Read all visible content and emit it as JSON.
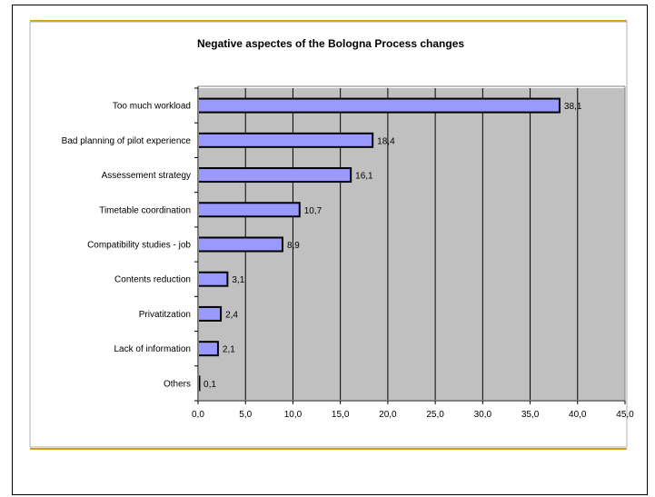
{
  "colors": {
    "bar_fill": "#9999ff",
    "bar_stroke": "#000000",
    "plot_bg": "#c0c0c0",
    "rule_gold": "#d4a017",
    "grid": "#000000"
  },
  "chart_data": {
    "type": "bar",
    "orientation": "horizontal",
    "title": "Negative aspectes of the Bologna Process changes",
    "xlabel": "",
    "ylabel": "",
    "categories": [
      "Too much workload",
      "Bad planning of pilot experience",
      "Assessement strategy",
      "Timetable coordination",
      "Compatibility studies - job",
      "Contents reduction",
      "Privatitzation",
      "Lack of information",
      "Others"
    ],
    "values": [
      38.1,
      18.4,
      16.1,
      10.7,
      8.9,
      3.1,
      2.4,
      2.1,
      0.1
    ],
    "value_labels": [
      "38,1",
      "18,4",
      "16,1",
      "10,7",
      "8,9",
      "3,1",
      "2,4",
      "2,1",
      "0,1"
    ],
    "xlim": [
      0,
      45
    ],
    "xticks": [
      0,
      5,
      10,
      15,
      20,
      25,
      30,
      35,
      40,
      45
    ],
    "xtick_labels": [
      "0,0",
      "5,0",
      "10,0",
      "15,0",
      "20,0",
      "25,0",
      "30,0",
      "35,0",
      "40,0",
      "45,0"
    ],
    "grid": true,
    "legend": "none"
  }
}
